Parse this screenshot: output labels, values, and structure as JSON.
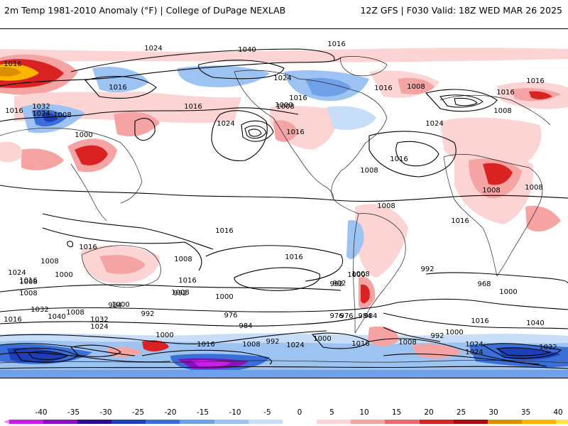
{
  "header": {
    "title_left": "2m Temp 1981-2010 Anomaly (°F) | College of DuPage NEXLAB",
    "title_right": "12Z GFS | F030 Valid: 18Z WED MAR 26 2025"
  },
  "isobar_labels": [
    "1024",
    "1032",
    "1016",
    "1024",
    "1040",
    "1016",
    "1016",
    "1024",
    "1016",
    "1008",
    "1000",
    "1016",
    "1032",
    "1016",
    "1024",
    "1008",
    "1000",
    "1016",
    "1016",
    "1024",
    "1024",
    "1016",
    "1016",
    "1008",
    "1016",
    "1008",
    "1008",
    "1008",
    "1008",
    "1008",
    "1016",
    "1016",
    "1016",
    "1008",
    "1008",
    "1016",
    "1016",
    "1024",
    "1016",
    "1008",
    "1016",
    "1008",
    "1000",
    "992",
    "1008",
    "1000",
    "1008",
    "992",
    "992",
    "1000",
    "992",
    "976",
    "984",
    "984",
    "968",
    "1000",
    "1016",
    "1040",
    "1032",
    "1008",
    "1024",
    "1032",
    "1000",
    "1040",
    "1024",
    "984",
    "992",
    "976",
    "1000",
    "1016",
    "1008",
    "992",
    "1024",
    "1000",
    "1016",
    "1008",
    "992",
    "1000",
    "1024",
    "1032",
    "976",
    "984",
    "1016"
  ],
  "colorbar": {
    "labels": [
      "-40",
      "-35",
      "-30",
      "-25",
      "-20",
      "-15",
      "-10",
      "-5",
      "0",
      "5",
      "10",
      "15",
      "20",
      "25",
      "30",
      "35",
      "40"
    ],
    "colors": [
      "#f37cf0",
      "#c81ee8",
      "#8b0fbf",
      "#2a0d8e",
      "#1d3fb8",
      "#3a6fd8",
      "#6fa0e8",
      "#9cc3f2",
      "#c8def8",
      "#ffffff",
      "#fcd4d4",
      "#f5a3a3",
      "#ee6a6a",
      "#d92323",
      "#a80b0b",
      "#d89000",
      "#ffb400",
      "#ffe24a",
      "#f6f0c0"
    ]
  }
}
